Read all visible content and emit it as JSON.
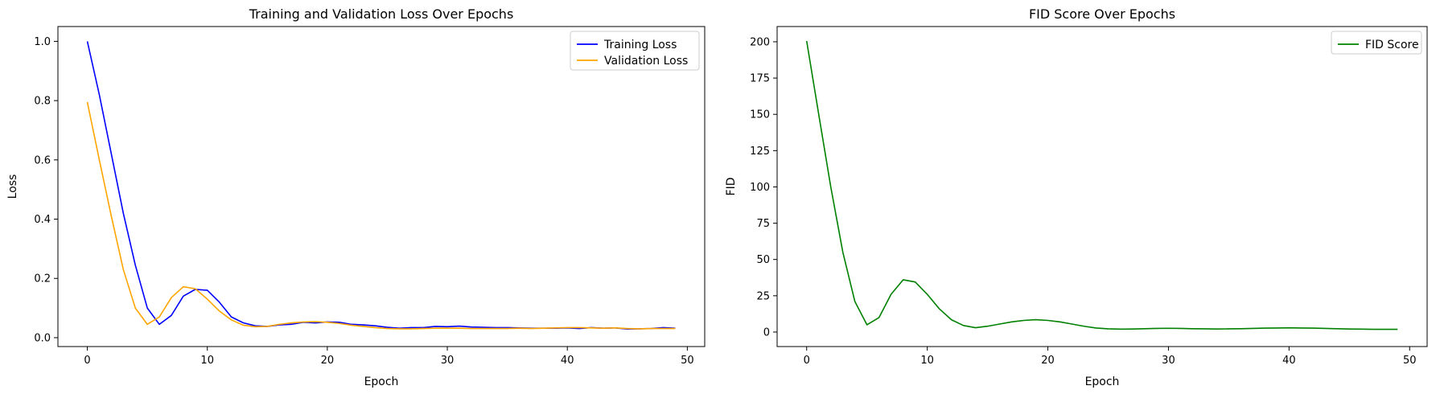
{
  "chart_data": [
    {
      "type": "line",
      "title": "Training and Validation Loss Over Epochs",
      "xlabel": "Epoch",
      "ylabel": "Loss",
      "xlim": [
        -2.45,
        51.45
      ],
      "ylim": [
        -0.03,
        1.05
      ],
      "xticks": [
        0,
        10,
        20,
        30,
        40,
        50
      ],
      "yticks": [
        0.0,
        0.2,
        0.4,
        0.6,
        0.8,
        1.0
      ],
      "legend_position": "upper right",
      "series": [
        {
          "name": "Training Loss",
          "color": "#0000ff",
          "x": [
            0,
            1,
            2,
            3,
            4,
            5,
            6,
            7,
            8,
            9,
            10,
            11,
            12,
            13,
            14,
            15,
            16,
            17,
            18,
            19,
            20,
            21,
            22,
            23,
            24,
            25,
            26,
            27,
            28,
            29,
            30,
            31,
            32,
            33,
            34,
            35,
            36,
            37,
            38,
            39,
            40,
            41,
            42,
            43,
            44,
            45,
            46,
            47,
            48,
            49
          ],
          "values": [
            1.0,
            0.82,
            0.62,
            0.42,
            0.245,
            0.1,
            0.045,
            0.075,
            0.14,
            0.163,
            0.16,
            0.12,
            0.07,
            0.05,
            0.04,
            0.038,
            0.043,
            0.045,
            0.052,
            0.05,
            0.053,
            0.052,
            0.045,
            0.043,
            0.04,
            0.035,
            0.032,
            0.034,
            0.034,
            0.038,
            0.037,
            0.039,
            0.036,
            0.035,
            0.034,
            0.034,
            0.033,
            0.032,
            0.032,
            0.032,
            0.033,
            0.031,
            0.034,
            0.032,
            0.033,
            0.029,
            0.03,
            0.031,
            0.034,
            0.032
          ]
        },
        {
          "name": "Validation Loss",
          "color": "#ffa500",
          "x": [
            0,
            1,
            2,
            3,
            4,
            5,
            6,
            7,
            8,
            9,
            10,
            11,
            12,
            13,
            14,
            15,
            16,
            17,
            18,
            19,
            20,
            21,
            22,
            23,
            24,
            25,
            26,
            27,
            28,
            29,
            30,
            31,
            32,
            33,
            34,
            35,
            36,
            37,
            38,
            39,
            40,
            41,
            42,
            43,
            44,
            45,
            46,
            47,
            48,
            49
          ],
          "values": [
            0.795,
            0.6,
            0.41,
            0.23,
            0.1,
            0.045,
            0.07,
            0.135,
            0.172,
            0.165,
            0.13,
            0.09,
            0.06,
            0.042,
            0.037,
            0.038,
            0.045,
            0.05,
            0.053,
            0.054,
            0.052,
            0.048,
            0.042,
            0.038,
            0.034,
            0.031,
            0.03,
            0.03,
            0.031,
            0.032,
            0.032,
            0.032,
            0.031,
            0.031,
            0.031,
            0.031,
            0.032,
            0.031,
            0.032,
            0.033,
            0.034,
            0.034,
            0.033,
            0.032,
            0.033,
            0.031,
            0.03,
            0.031,
            0.031,
            0.031
          ]
        }
      ]
    },
    {
      "type": "line",
      "title": "FID Score Over Epochs",
      "xlabel": "Epoch",
      "ylabel": "FID",
      "xlim": [
        -2.45,
        51.45
      ],
      "ylim": [
        -10,
        210.5
      ],
      "xticks": [
        0,
        10,
        20,
        30,
        40,
        50
      ],
      "yticks": [
        0,
        25,
        50,
        75,
        100,
        125,
        150,
        175,
        200
      ],
      "legend_position": "upper right",
      "series": [
        {
          "name": "FID Score",
          "color": "#008000",
          "x": [
            0,
            1,
            2,
            3,
            4,
            5,
            6,
            7,
            8,
            9,
            10,
            11,
            12,
            13,
            14,
            15,
            16,
            17,
            18,
            19,
            20,
            21,
            22,
            23,
            24,
            25,
            26,
            27,
            28,
            29,
            30,
            31,
            32,
            33,
            34,
            35,
            36,
            37,
            38,
            39,
            40,
            41,
            42,
            43,
            44,
            45,
            46,
            47,
            48,
            49
          ],
          "values": [
            200.5,
            150,
            100,
            55,
            21,
            5,
            10,
            26,
            36,
            34.5,
            26,
            16,
            8.5,
            4.5,
            3,
            4,
            5.5,
            7,
            8,
            8.5,
            8,
            7,
            5.5,
            4,
            2.8,
            2.2,
            2,
            2.1,
            2.3,
            2.5,
            2.6,
            2.5,
            2.3,
            2.2,
            2.1,
            2.2,
            2.3,
            2.5,
            2.7,
            2.8,
            2.9,
            2.8,
            2.7,
            2.5,
            2.3,
            2.1,
            2.0,
            1.9,
            1.9,
            1.9
          ]
        }
      ]
    }
  ]
}
